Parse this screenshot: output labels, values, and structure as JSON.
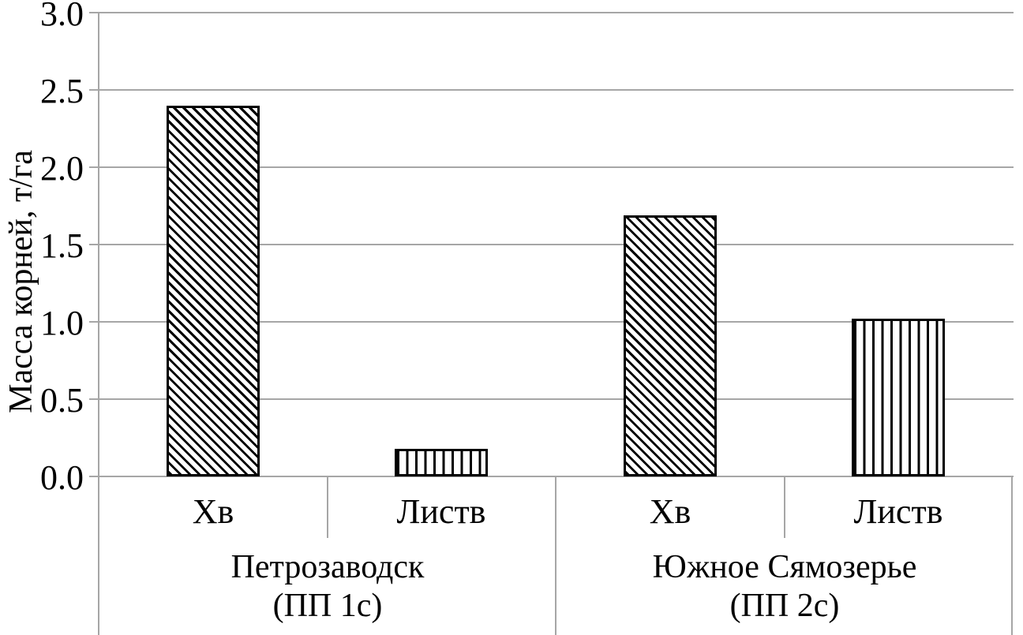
{
  "chart_data": {
    "type": "bar",
    "title": "",
    "ylabel": "Масса корней, т/га",
    "xlabel": "",
    "ylim": [
      0,
      3
    ],
    "ytick_step": 0.5,
    "yticks": [
      "0.0",
      "0.5",
      "1.0",
      "1.5",
      "2.0",
      "2.5",
      "3.0"
    ],
    "grid": "horizontal gridlines on",
    "legend": "none",
    "gridline_color": "#a6a6a6",
    "bar_outline_color": "#000000",
    "bar_fill_color": "#ffffff",
    "hatch_color": "#000000",
    "groups": [
      {
        "label_line1": "Петрозаводск",
        "label_line2": "(ПП 1с)",
        "bars": [
          {
            "category": "Хв",
            "value": 2.4,
            "hatch": "diagonal"
          },
          {
            "category": "Листв",
            "value": 0.18,
            "hatch": "vertical"
          }
        ]
      },
      {
        "label_line1": "Южное Сямозерье",
        "label_line2": "(ПП 2с)",
        "bars": [
          {
            "category": "Хв",
            "value": 1.69,
            "hatch": "diagonal"
          },
          {
            "category": "Листв",
            "value": 1.02,
            "hatch": "vertical"
          }
        ]
      }
    ]
  }
}
